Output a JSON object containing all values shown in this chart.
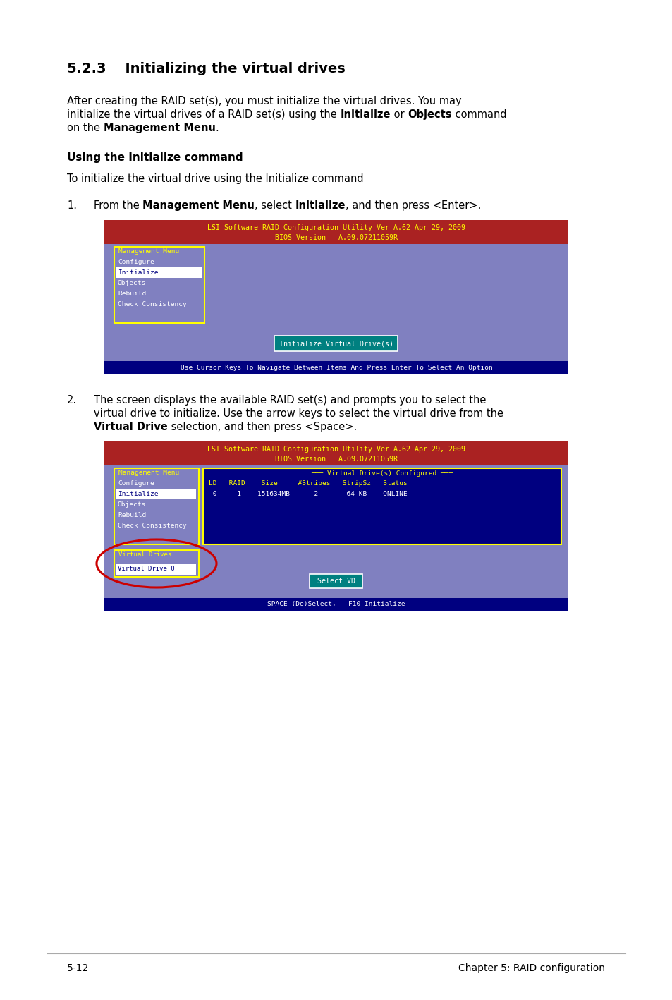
{
  "page_bg": "#ffffff",
  "section_title": "5.2.3    Initializing the virtual drives",
  "subsection_title": "Using the Initialize command",
  "sub_para": "To initialize the virtual drive using the Initialize command",
  "screen1_header1": "LSI Software RAID Configuration Utility Ver A.62 Apr 29, 2009",
  "screen1_header2": "BIOS Version   A.09.07211059R",
  "screen1_bg": "#8080c0",
  "screen1_header_bg": "#aa2222",
  "screen1_header_fg": "#ffff00",
  "screen1_menu_border_fg": "#ffff00",
  "screen1_menu_label": "Management Menu",
  "screen1_menu_label_fg": "#ffff00",
  "screen1_menu_items": [
    "Configure",
    "Initialize",
    "Objects",
    "Rebuild",
    "Check Consistency"
  ],
  "screen1_menu_fg": "#ffffff",
  "screen1_selected_bg": "#ffffff",
  "screen1_selected_fg": "#000080",
  "screen1_btn_text": "Initialize Virtual Drive(s)",
  "screen1_btn_bg": "#008080",
  "screen1_btn_fg": "#ffffff",
  "screen1_btn_border": "#ffffff",
  "screen1_footer_text": "Use Cursor Keys To Navigate Between Items And Press Enter To Select An Option",
  "screen1_footer_bg": "#000080",
  "screen1_footer_fg": "#ffffff",
  "screen2_header1": "LSI Software RAID Configuration Utility Ver A.62 Apr 29, 2009",
  "screen2_header2": "BIOS Version   A.09.07211059R",
  "screen2_bg": "#8080c0",
  "screen2_header_bg": "#aa2222",
  "screen2_header_fg": "#ffff00",
  "screen2_menu_label": "Management Menu",
  "screen2_menu_items": [
    "Configure",
    "Initialize",
    "Objects",
    "Rebuild",
    "Check Consistency"
  ],
  "screen2_vd_label": "Virtual Drive(s) Configured",
  "screen2_vd_border": "#ffff00",
  "screen2_vd_label_fg": "#ffff00",
  "screen2_vd_cols_fg": "#ffff00",
  "screen2_vd_row_fg": "#ffffff",
  "screen2_vdrives_label": "Virtual Drives",
  "screen2_vdrives_item": "Virtual Drive 0",
  "screen2_vdrives_border": "#ffff00",
  "screen2_vdrives_label_fg": "#ffff00",
  "screen2_vdrives_item_bg": "#ffffff",
  "screen2_vdrives_item_fg": "#000080",
  "screen2_btn_text": "Select VD",
  "screen2_btn_bg": "#008080",
  "screen2_btn_fg": "#ffffff",
  "screen2_footer_text": "SPACE-(De)Select,   F10-Initialize",
  "screen2_footer_bg": "#000080",
  "screen2_footer_fg": "#ffffff",
  "footer_line_left": "5-12",
  "footer_line_right": "Chapter 5: RAID configuration",
  "text_color": "#000000",
  "mono_font": "monospace"
}
